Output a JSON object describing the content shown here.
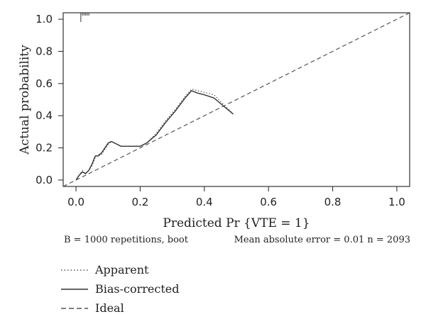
{
  "chart_data": {
    "type": "line",
    "xlabel": "Predicted Pr {VTE = 1}",
    "ylabel": "Actual probability",
    "xlim": [
      -0.04,
      1.04
    ],
    "ylim": [
      -0.04,
      1.04
    ],
    "xticks": [
      0.0,
      0.2,
      0.4,
      0.6,
      0.8,
      1.0
    ],
    "xtick_labels": [
      "0.0",
      "0.2",
      "0.4",
      "0.6",
      "0.8",
      "1.0"
    ],
    "yticks": [
      0.0,
      0.2,
      0.4,
      0.6,
      0.8,
      1.0
    ],
    "ytick_labels": [
      "0.0",
      "0.2",
      "0.4",
      "0.6",
      "0.8",
      "1.0"
    ],
    "grid": false,
    "legend_position": "bottom-left, below plot",
    "series": [
      {
        "name": "Apparent",
        "style": "dotted",
        "x": [
          0.0,
          0.01,
          0.02,
          0.03,
          0.04,
          0.05,
          0.06,
          0.07,
          0.08,
          0.09,
          0.1,
          0.11,
          0.12,
          0.13,
          0.14,
          0.15,
          0.17,
          0.2,
          0.22,
          0.25,
          0.28,
          0.31,
          0.34,
          0.36,
          0.38,
          0.4,
          0.43,
          0.46,
          0.49
        ],
        "y": [
          0.0,
          0.03,
          0.06,
          0.04,
          0.06,
          0.09,
          0.14,
          0.16,
          0.16,
          0.19,
          0.22,
          0.24,
          0.23,
          0.22,
          0.21,
          0.21,
          0.21,
          0.21,
          0.23,
          0.29,
          0.37,
          0.44,
          0.52,
          0.565,
          0.555,
          0.545,
          0.53,
          0.47,
          0.41
        ]
      },
      {
        "name": "Bias-corrected",
        "style": "solid",
        "x": [
          0.0,
          0.01,
          0.02,
          0.03,
          0.04,
          0.05,
          0.06,
          0.07,
          0.08,
          0.09,
          0.1,
          0.11,
          0.12,
          0.13,
          0.14,
          0.15,
          0.17,
          0.2,
          0.22,
          0.25,
          0.28,
          0.31,
          0.34,
          0.36,
          0.38,
          0.4,
          0.43,
          0.46,
          0.49
        ],
        "y": [
          0.0,
          0.03,
          0.05,
          0.04,
          0.06,
          0.1,
          0.15,
          0.15,
          0.17,
          0.2,
          0.23,
          0.24,
          0.23,
          0.22,
          0.21,
          0.21,
          0.21,
          0.21,
          0.23,
          0.28,
          0.36,
          0.43,
          0.51,
          0.555,
          0.54,
          0.53,
          0.51,
          0.46,
          0.41
        ]
      },
      {
        "name": "Ideal",
        "style": "dashed",
        "x": [
          -0.04,
          1.04
        ],
        "y": [
          -0.04,
          1.04
        ]
      }
    ],
    "rug": {
      "x": [
        0.015,
        0.02,
        0.025,
        0.03,
        0.035,
        0.04
      ],
      "y_level": 1.0
    }
  },
  "footer": {
    "left": "B = 1000 repetitions, boot",
    "right": "Mean absolute error = 0.01 n = 2093"
  },
  "legend": {
    "items": [
      {
        "label": "Apparent",
        "dash": "1.5 3"
      },
      {
        "label": "Bias-corrected",
        "dash": ""
      },
      {
        "label": "Ideal",
        "dash": "7 4"
      }
    ]
  }
}
